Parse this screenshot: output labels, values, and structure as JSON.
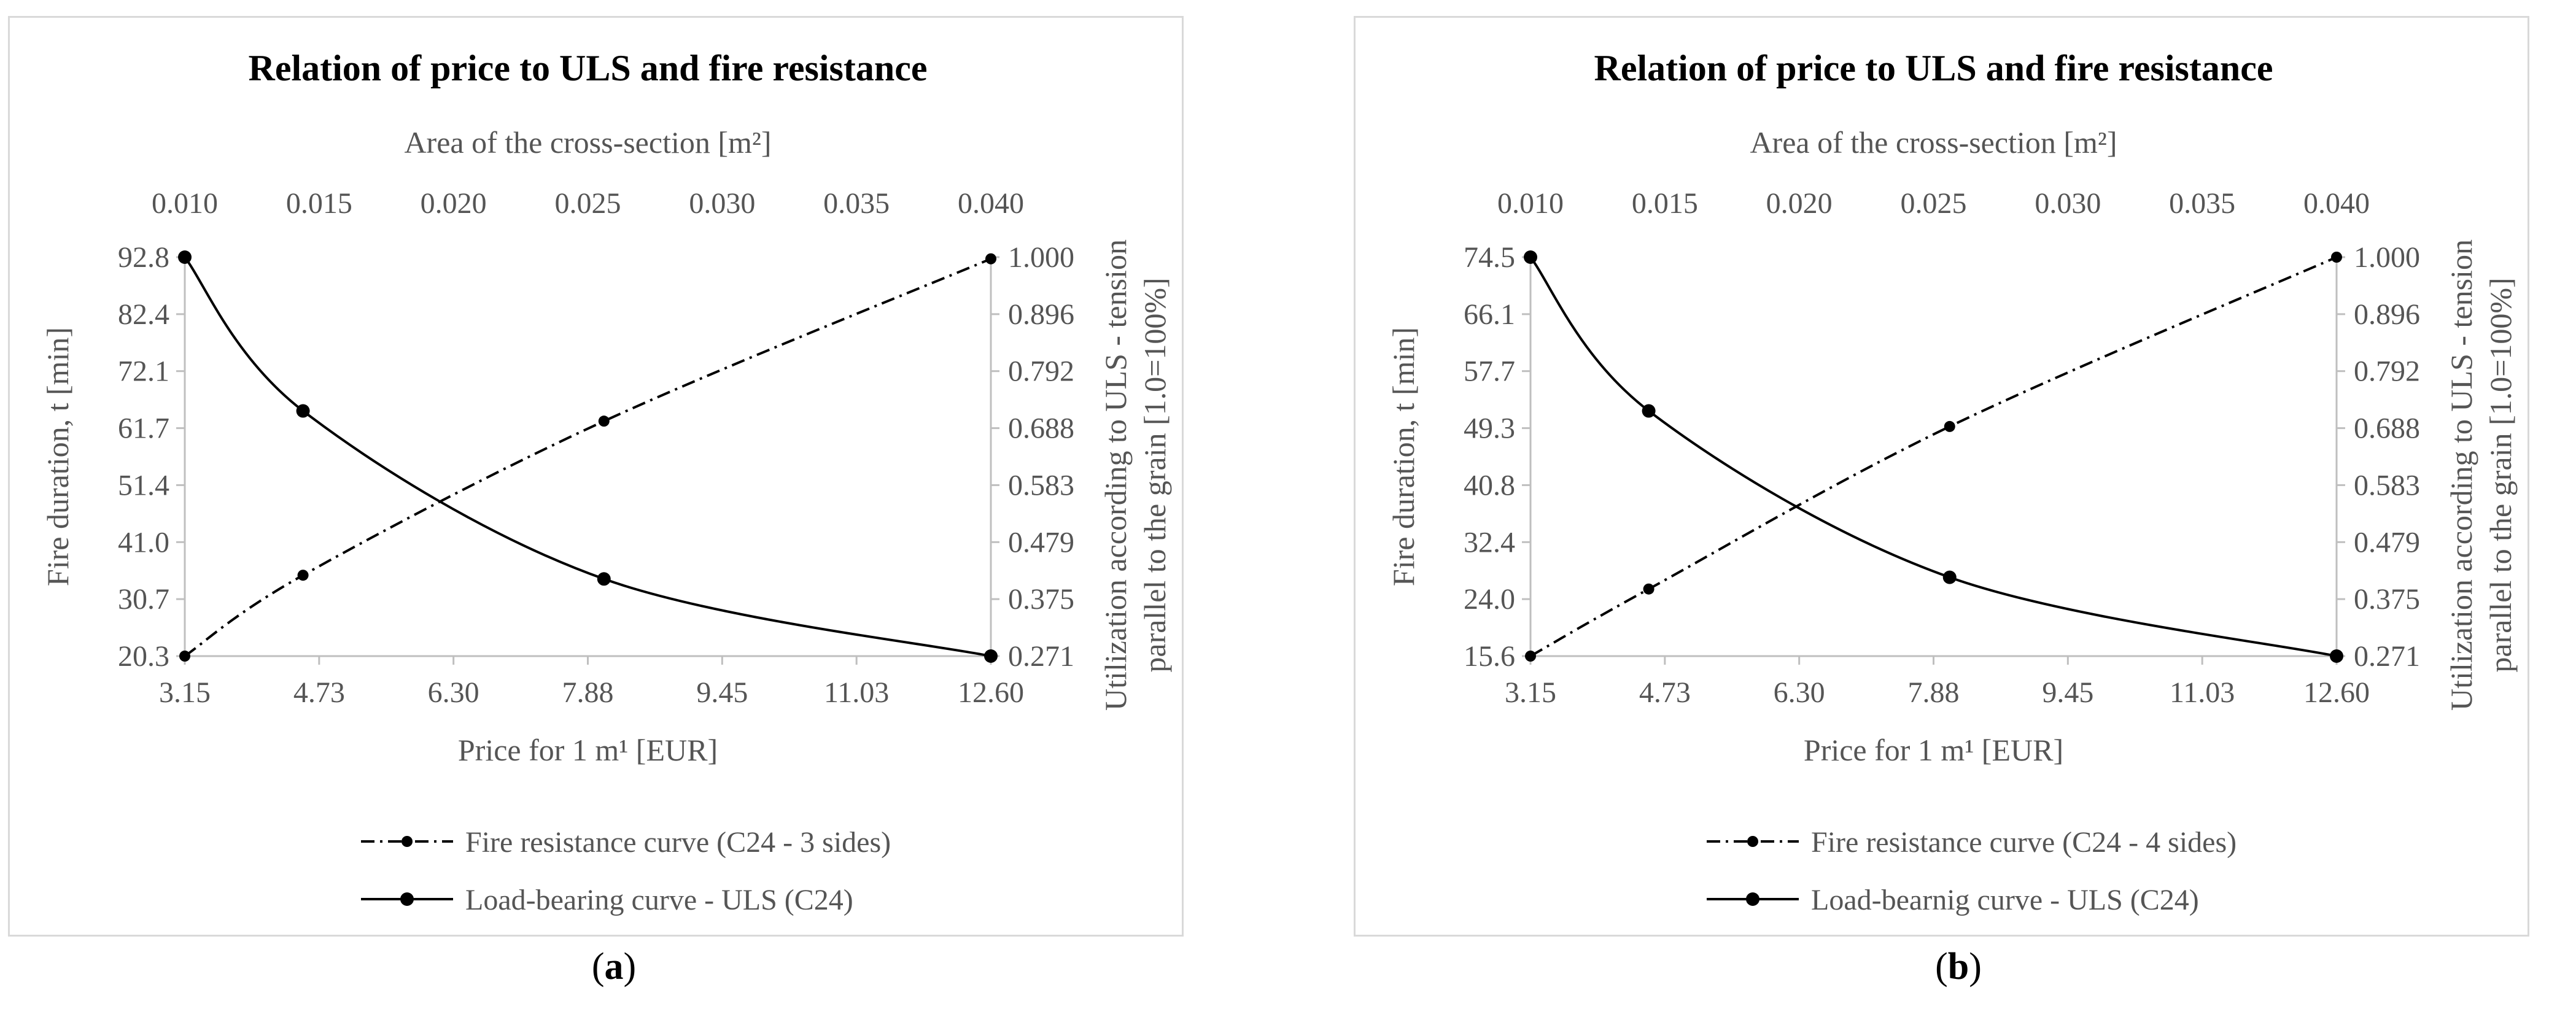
{
  "chart_data": [
    {
      "type": "line",
      "panel": "a",
      "title": "Relation of price to ULS and fire resistance",
      "x_top_label": "Area of the cross-section [m²]",
      "x_top_ticks": [
        "0.010",
        "0.015",
        "0.020",
        "0.025",
        "0.030",
        "0.035",
        "0.040"
      ],
      "x_top_range": [
        0.01,
        0.04
      ],
      "x_bottom_label": "Price for 1 m¹ [EUR]",
      "x_bottom_ticks": [
        "3.15",
        "4.73",
        "6.30",
        "7.88",
        "9.45",
        "11.03",
        "12.60"
      ],
      "x_bottom_range": [
        3.15,
        12.6
      ],
      "y_left_label": "Fire duration, t [min]",
      "y_left_ticks": [
        "92.8",
        "82.4",
        "72.1",
        "61.7",
        "51.4",
        "41.0",
        "30.7",
        "20.3"
      ],
      "y_left_range": [
        20.3,
        92.8
      ],
      "y_right_label_line1": "Utilization according to ULS - tension",
      "y_right_label_line2": "parallel to the grain [1.0=100%]",
      "y_right_ticks": [
        "1.000",
        "0.896",
        "0.792",
        "0.688",
        "0.583",
        "0.479",
        "0.375",
        "0.271"
      ],
      "y_right_range": [
        0.271,
        1.0
      ],
      "legend": [
        "Fire resistance curve (C24 - 3 sides)",
        "Load-bearing curve - ULS (C24)"
      ],
      "series": [
        {
          "name": "Fire resistance curve (C24 - 3 sides)",
          "style": "dashdot",
          "axis": "left",
          "x_area": [
            0.01,
            0.0144,
            0.0256,
            0.04
          ],
          "y": [
            20.3,
            35.0,
            63.0,
            92.5
          ]
        },
        {
          "name": "Load-bearing curve - ULS (C24)",
          "style": "solid",
          "axis": "right",
          "x_area": [
            0.01,
            0.0144,
            0.0256,
            0.04
          ],
          "y": [
            1.0,
            0.719,
            0.412,
            0.271
          ]
        }
      ]
    },
    {
      "type": "line",
      "panel": "b",
      "title": "Relation of price to ULS and fire resistance",
      "x_top_label": "Area of the cross-section [m²]",
      "x_top_ticks": [
        "0.010",
        "0.015",
        "0.020",
        "0.025",
        "0.030",
        "0.035",
        "0.040"
      ],
      "x_top_range": [
        0.01,
        0.04
      ],
      "x_bottom_label": "Price for 1 m¹ [EUR]",
      "x_bottom_ticks": [
        "3.15",
        "4.73",
        "6.30",
        "7.88",
        "9.45",
        "11.03",
        "12.60"
      ],
      "x_bottom_range": [
        3.15,
        12.6
      ],
      "y_left_label": "Fire duration, t [min]",
      "y_left_ticks": [
        "74.5",
        "66.1",
        "57.7",
        "49.3",
        "40.8",
        "32.4",
        "24.0",
        "15.6"
      ],
      "y_left_range": [
        15.6,
        74.5
      ],
      "y_right_label_line1": "Utilization according to ULS - tension",
      "y_right_label_line2": "parallel to the grain [1.0=100%]",
      "y_right_ticks": [
        "1.000",
        "0.896",
        "0.792",
        "0.688",
        "0.583",
        "0.479",
        "0.375",
        "0.271"
      ],
      "y_right_range": [
        0.271,
        1.0
      ],
      "legend": [
        "Fire resistance curve (C24 - 4 sides)",
        "Load-bearnig curve - ULS (C24)"
      ],
      "series": [
        {
          "name": "Fire resistance curve (C24 - 4 sides)",
          "style": "dashdot",
          "axis": "left",
          "x_area": [
            0.01,
            0.0144,
            0.0256,
            0.04
          ],
          "y": [
            15.6,
            25.5,
            49.5,
            74.5
          ]
        },
        {
          "name": "Load-bearnig curve - ULS (C24)",
          "style": "solid",
          "axis": "right",
          "x_area": [
            0.01,
            0.0144,
            0.0256,
            0.04
          ],
          "y": [
            1.0,
            0.719,
            0.415,
            0.271
          ]
        }
      ]
    }
  ],
  "captions": {
    "a": {
      "open": "(",
      "letter": "a",
      "close": ")"
    },
    "b": {
      "open": "(",
      "letter": "b",
      "close": ")"
    }
  }
}
